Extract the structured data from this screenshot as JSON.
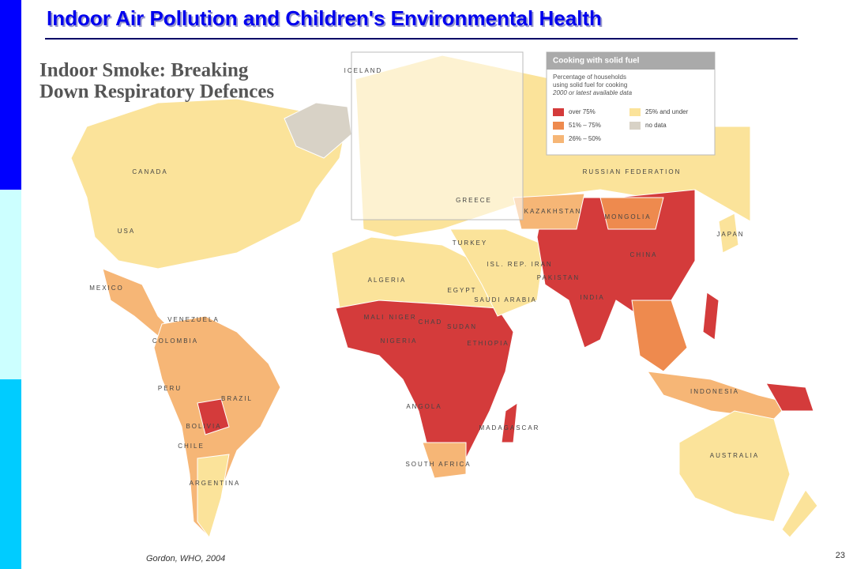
{
  "header": {
    "title": "Indoor Air Pollution and Children's Environmental Health"
  },
  "map": {
    "title_lines": [
      "Indoor Smoke: Breaking",
      "Down Respiratory Defences"
    ],
    "labels": [
      "CANADA",
      "USA",
      "MEXICO",
      "VENEZUELA",
      "COLOMBIA",
      "PERU",
      "BRAZIL",
      "BOLIVIA",
      "CHILE",
      "ARGENTINA",
      "RUSSIAN FEDERATION",
      "KAZAKHSTAN",
      "MONGOLIA",
      "CHINA",
      "INDIA",
      "PAKISTAN",
      "JAPAN",
      "ALGERIA",
      "EGYPT",
      "MALI",
      "NIGER",
      "CHAD",
      "SUDAN",
      "NIGERIA",
      "ETHIOPIA",
      "ANGOLA",
      "SOUTH AFRICA",
      "MADAGASCAR",
      "SAUDI ARABIA",
      "TURKEY",
      "ISL. REP. IRAN",
      "INDONESIA",
      "AUSTRALIA",
      "ICELAND",
      "GREECE"
    ]
  },
  "legend": {
    "title": "Cooking with solid fuel",
    "description": [
      "Percentage of households",
      "using solid fuel for cooking",
      "2000 or latest available data"
    ],
    "items": [
      {
        "label": "over 75%",
        "color": "#d43b3b"
      },
      {
        "label": "51% – 75%",
        "color": "#ee8a4e"
      },
      {
        "label": "26% – 50%",
        "color": "#f6b676"
      },
      {
        "label": "25% and under",
        "color": "#fbe39a"
      },
      {
        "label": "no data",
        "color": "#d8d2c6"
      }
    ]
  },
  "footer": {
    "source": "Gordon, WHO, 2004",
    "page": "23"
  }
}
